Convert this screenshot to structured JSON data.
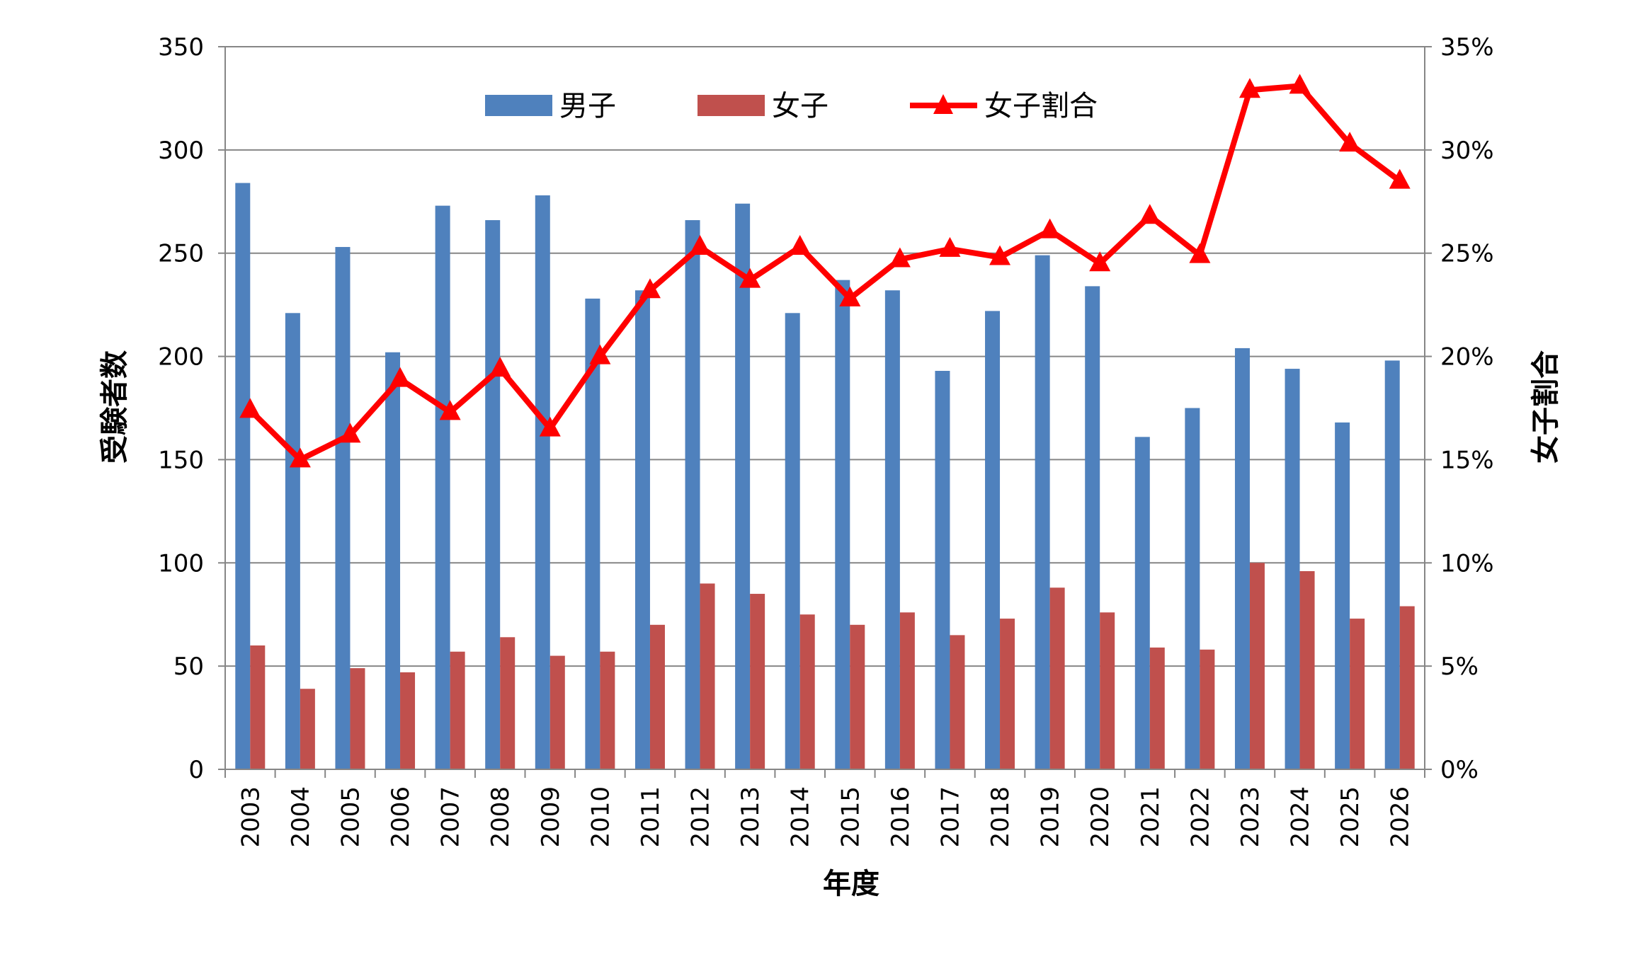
{
  "chart_data": {
    "type": "bar",
    "title": "",
    "xlabel": "年度",
    "ylabel": "受験者数",
    "y2label": "女子割合",
    "ylim": [
      0,
      350
    ],
    "y2lim": [
      0,
      0.35
    ],
    "yticks": [
      "0",
      "50",
      "100",
      "150",
      "200",
      "250",
      "300",
      "350"
    ],
    "y2ticks": [
      "0%",
      "5%",
      "10%",
      "15%",
      "20%",
      "25%",
      "30%",
      "35%"
    ],
    "grid": true,
    "legend": "top-center",
    "categories": [
      "2003",
      "2004",
      "2005",
      "2006",
      "2007",
      "2008",
      "2009",
      "2010",
      "2011",
      "2012",
      "2013",
      "2014",
      "2015",
      "2016",
      "2017",
      "2018",
      "2019",
      "2020",
      "2021",
      "2022",
      "2023",
      "2024",
      "2025",
      "2026"
    ],
    "series": [
      {
        "name": "男子",
        "kind": "bar",
        "axis": "left",
        "color": "#4F81BD",
        "values": [
          284,
          221,
          253,
          202,
          273,
          266,
          278,
          228,
          232,
          266,
          274,
          221,
          237,
          232,
          193,
          222,
          249,
          234,
          161,
          175,
          204,
          194,
          168,
          198
        ]
      },
      {
        "name": "女子",
        "kind": "bar",
        "axis": "left",
        "color": "#C0504D",
        "values": [
          60,
          39,
          49,
          47,
          57,
          64,
          55,
          57,
          70,
          90,
          85,
          75,
          70,
          76,
          65,
          73,
          88,
          76,
          59,
          58,
          100,
          96,
          73,
          79
        ]
      },
      {
        "name": "女子割合",
        "kind": "line",
        "axis": "right",
        "color": "#FF0000",
        "marker": "triangle",
        "values": [
          0.174,
          0.15,
          0.162,
          0.189,
          0.173,
          0.194,
          0.165,
          0.2,
          0.232,
          0.253,
          0.237,
          0.253,
          0.228,
          0.247,
          0.252,
          0.248,
          0.261,
          0.245,
          0.268,
          0.249,
          0.329,
          0.331,
          0.303,
          0.285
        ]
      }
    ]
  }
}
